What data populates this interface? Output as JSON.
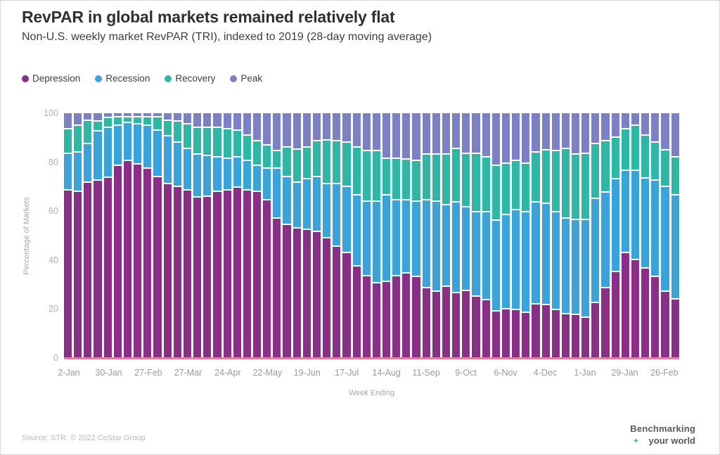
{
  "header": {
    "title": "RevPAR in global markets remained relatively flat",
    "subtitle": "Non-U.S. weekly market RevPAR (TRI), indexed to 2019 (28-day moving average)"
  },
  "legend": [
    {
      "label": "Depression",
      "color": "#8a2f88"
    },
    {
      "label": "Recession",
      "color": "#3aa3d9"
    },
    {
      "label": "Recovery",
      "color": "#2fb7a6"
    },
    {
      "label": "Peak",
      "color": "#7c80c4"
    }
  ],
  "colors": {
    "axis_text": "#a8a8a8",
    "baseline": "#e87ca3",
    "title_text": "#303030"
  },
  "chart_data": {
    "type": "bar",
    "stacked": true,
    "title": "RevPAR in global markets remained relatively flat",
    "subtitle": "Non-U.S. weekly market RevPAR (TRI), indexed to 2019 (28-day moving average)",
    "xlabel": "Week Ending",
    "ylabel": "Percentage of Markets",
    "ylim": [
      0,
      100
    ],
    "yticks": [
      0,
      20,
      40,
      60,
      80,
      100
    ],
    "grid": false,
    "legend_position": "top-left",
    "x_tick_every": 4,
    "categories": [
      "2-Jan",
      "9-Jan",
      "16-Jan",
      "23-Jan",
      "30-Jan",
      "6-Feb",
      "13-Feb",
      "20-Feb",
      "27-Feb",
      "6-Mar",
      "13-Mar",
      "20-Mar",
      "27-Mar",
      "3-Apr",
      "10-Apr",
      "17-Apr",
      "24-Apr",
      "1-May",
      "8-May",
      "15-May",
      "22-May",
      "29-May",
      "5-Jun",
      "12-Jun",
      "19-Jun",
      "26-Jun",
      "3-Jul",
      "10-Jul",
      "17-Jul",
      "24-Jul",
      "31-Jul",
      "7-Aug",
      "14-Aug",
      "21-Aug",
      "28-Aug",
      "4-Sep",
      "11-Sep",
      "18-Sep",
      "25-Sep",
      "2-Oct",
      "9-Oct",
      "16-Oct",
      "23-Oct",
      "30-Oct",
      "6-Nov",
      "13-Nov",
      "20-Nov",
      "27-Nov",
      "4-Dec",
      "11-Dec",
      "18-Dec",
      "25-Dec",
      "1-Jan",
      "8-Jan",
      "15-Jan",
      "22-Jan",
      "29-Jan",
      "5-Feb",
      "12-Feb",
      "19-Feb",
      "26-Feb",
      "5-Mar"
    ],
    "series": [
      {
        "name": "Depression",
        "color": "#8a2f88",
        "values": [
          69,
          68.5,
          72,
          73,
          74,
          79,
          81,
          79.5,
          78,
          74.5,
          71.5,
          70.5,
          69,
          66,
          66.5,
          68.5,
          69,
          70,
          69,
          68.5,
          65,
          57.5,
          55,
          53.5,
          53,
          52,
          49.5,
          46,
          43.5,
          38,
          34,
          31,
          31.5,
          34,
          35,
          33.5,
          29,
          27.5,
          29.5,
          27,
          28,
          25.5,
          24,
          19.5,
          20.5,
          20,
          19,
          22.5,
          22,
          20,
          18.5,
          18,
          17,
          23,
          29,
          35.5,
          43.5,
          40.5,
          37,
          33.5,
          27.5,
          24.5
        ]
      },
      {
        "name": "Recession",
        "color": "#3aa3d9",
        "values": [
          15,
          16,
          16,
          20,
          20.5,
          16.5,
          15.5,
          16.5,
          17.5,
          19,
          19.5,
          18,
          17,
          17.5,
          16.5,
          14,
          13,
          12.5,
          12,
          10.5,
          13,
          20.5,
          19.5,
          18.5,
          20.5,
          22.5,
          22,
          25.5,
          27,
          29,
          30.5,
          33.5,
          35.5,
          31,
          30,
          31,
          36,
          37,
          33.5,
          37,
          34,
          34.5,
          36,
          37,
          38.5,
          41,
          41,
          41.5,
          41.5,
          40,
          39,
          39,
          40,
          42.5,
          39,
          38,
          33.5,
          36.5,
          37,
          39.5,
          43,
          42.5
        ]
      },
      {
        "name": "Recovery",
        "color": "#2fb7a6",
        "values": [
          10,
          11,
          9.5,
          4,
          4,
          3.5,
          2.5,
          3,
          3.5,
          5.5,
          6.5,
          8.5,
          10,
          11,
          11.5,
          12,
          12,
          11,
          10.5,
          10,
          9.5,
          7,
          12,
          13.5,
          13,
          14.5,
          18,
          17.5,
          18,
          19.5,
          20.5,
          20.5,
          15,
          17,
          16.5,
          16.5,
          18.5,
          19,
          20.5,
          22,
          22,
          24,
          22.5,
          22.5,
          21,
          20,
          20,
          20.5,
          22,
          25,
          28.5,
          26.5,
          27,
          22.5,
          21,
          17,
          17,
          18.5,
          17.5,
          15.5,
          15,
          15.5
        ]
      },
      {
        "name": "Peak",
        "color": "#7c80c4",
        "values": [
          6,
          4.5,
          2.5,
          3,
          1.5,
          1,
          1,
          1,
          1,
          1,
          2.5,
          3,
          4,
          5.5,
          5.5,
          5.5,
          6,
          6.5,
          8.5,
          11,
          12.5,
          15,
          13.5,
          14.5,
          13.5,
          11,
          10.5,
          11,
          11.5,
          13.5,
          15,
          15,
          18,
          18,
          18.5,
          19,
          16.5,
          16.5,
          16.5,
          14,
          16,
          16,
          17.5,
          21,
          20,
          19,
          20,
          15.5,
          14.5,
          15,
          14,
          16.5,
          16,
          12,
          11,
          9.5,
          6,
          4.5,
          8.5,
          11.5,
          14.5,
          17.5
        ]
      }
    ]
  },
  "footer": {
    "source": "Source: STR. © 2022 CoStar Group",
    "logo_line1": "Benchmarking",
    "logo_line2": "your world",
    "logo_mark": "✦"
  }
}
